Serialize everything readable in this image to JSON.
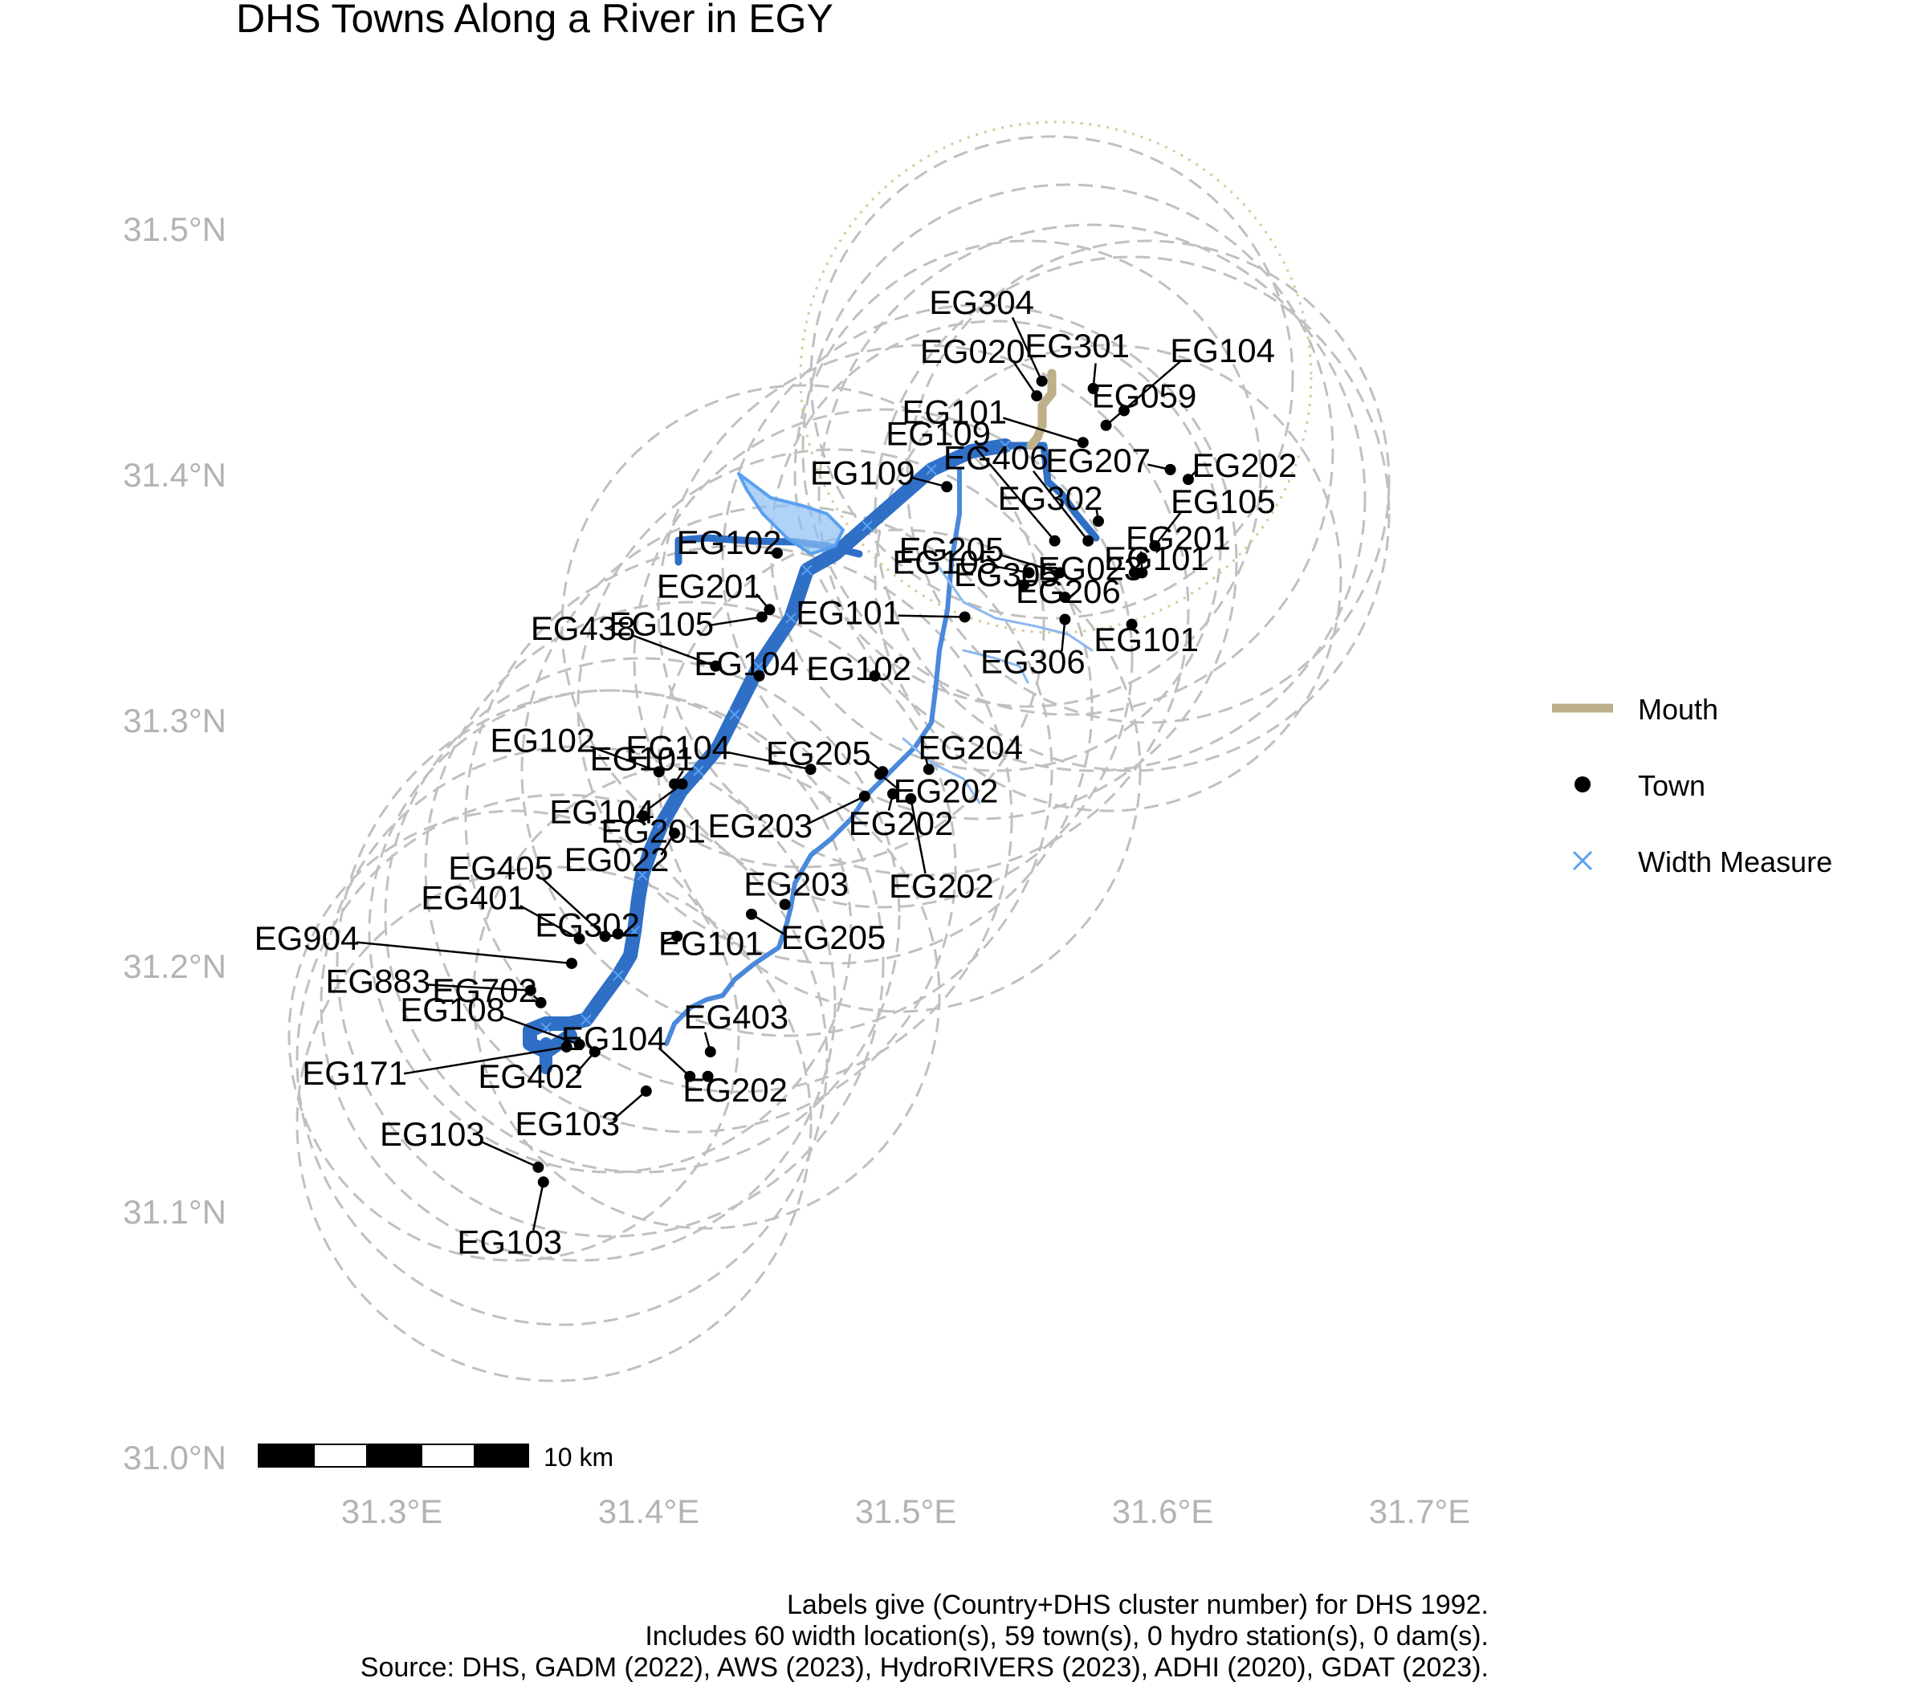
{
  "title": "DHS Towns Along a River in EGY",
  "axes": {
    "y_ticks": [
      {
        "value": 31.0,
        "label": "31.0°N"
      },
      {
        "value": 31.1,
        "label": "31.1°N"
      },
      {
        "value": 31.2,
        "label": "31.2°N"
      },
      {
        "value": 31.3,
        "label": "31.3°N"
      },
      {
        "value": 31.4,
        "label": "31.4°N"
      },
      {
        "value": 31.5,
        "label": "31.5°N"
      }
    ],
    "x_ticks": [
      {
        "value": 31.3,
        "label": "31.3°E"
      },
      {
        "value": 31.4,
        "label": "31.4°E"
      },
      {
        "value": 31.5,
        "label": "31.5°E"
      },
      {
        "value": 31.6,
        "label": "31.6°E"
      },
      {
        "value": 31.7,
        "label": "31.7°E"
      }
    ]
  },
  "legend": {
    "items": [
      {
        "key": "mouth",
        "label": "Mouth",
        "color": "#bdb08a"
      },
      {
        "key": "town",
        "label": "Town",
        "color": "#000000"
      },
      {
        "key": "width",
        "label": "Width Measure",
        "color": "#5aa0f0"
      }
    ]
  },
  "scale_bar": {
    "label": "10 km"
  },
  "colors": {
    "river_main": "#2f6fc6",
    "river_minor": "#5aa0f0",
    "buffer": "#c0c0c0",
    "mouth": "#bdb08a"
  },
  "towns": [
    {
      "label": "EG304",
      "lon": 31.553,
      "lat": 31.438
    },
    {
      "label": "EG020",
      "lon": 31.551,
      "lat": 31.432
    },
    {
      "label": "EG301",
      "lon": 31.573,
      "lat": 31.435
    },
    {
      "label": "EG104",
      "lon": 31.578,
      "lat": 31.42
    },
    {
      "label": "EG059",
      "lon": 31.585,
      "lat": 31.426
    },
    {
      "label": "EG101",
      "lon": 31.569,
      "lat": 31.413
    },
    {
      "label": "EG109",
      "lon": 31.558,
      "lat": 31.373
    },
    {
      "label": "EG406",
      "lon": 31.571,
      "lat": 31.373
    },
    {
      "label": "EG207",
      "lon": 31.603,
      "lat": 31.402
    },
    {
      "label": "EG202",
      "lon": 31.61,
      "lat": 31.398
    },
    {
      "label": "EG109",
      "lon": 31.516,
      "lat": 31.395
    },
    {
      "label": "EG302",
      "lon": 31.575,
      "lat": 31.381
    },
    {
      "label": "EG105",
      "lon": 31.597,
      "lat": 31.371
    },
    {
      "label": "EG102",
      "lon": 31.45,
      "lat": 31.368
    },
    {
      "label": "EG205",
      "lon": 31.56,
      "lat": 31.36
    },
    {
      "label": "EG101",
      "lon": 31.592,
      "lat": 31.366
    },
    {
      "label": "EG023",
      "lon": 31.589,
      "lat": 31.36
    },
    {
      "label": "EG105",
      "lon": 31.548,
      "lat": 31.36
    },
    {
      "label": "EG201",
      "lon": 31.447,
      "lat": 31.345
    },
    {
      "label": "EG206",
      "lon": 31.562,
      "lat": 31.35
    },
    {
      "label": "EG201",
      "lon": 31.592,
      "lat": 31.36
    },
    {
      "label": "EG105",
      "lon": 31.444,
      "lat": 31.342
    },
    {
      "label": "EG101",
      "lon": 31.523,
      "lat": 31.342
    },
    {
      "label": "EG305",
      "lon": 31.546,
      "lat": 31.355
    },
    {
      "label": "EG101",
      "lon": 31.588,
      "lat": 31.339
    },
    {
      "label": "EG438",
      "lon": 31.426,
      "lat": 31.322
    },
    {
      "label": "EG104",
      "lon": 31.443,
      "lat": 31.318
    },
    {
      "label": "EG102",
      "lon": 31.488,
      "lat": 31.318
    },
    {
      "label": "EG306",
      "lon": 31.562,
      "lat": 31.341
    },
    {
      "label": "EG104",
      "lon": 31.463,
      "lat": 31.28
    },
    {
      "label": "EG205",
      "lon": 31.491,
      "lat": 31.279
    },
    {
      "label": "EG204",
      "lon": 31.509,
      "lat": 31.28
    },
    {
      "label": "EG102",
      "lon": 31.404,
      "lat": 31.279
    },
    {
      "label": "EG101",
      "lon": 31.41,
      "lat": 31.274
    },
    {
      "label": "EG202",
      "lon": 31.49,
      "lat": 31.278
    },
    {
      "label": "EG104",
      "lon": 31.413,
      "lat": 31.274
    },
    {
      "label": "EG201",
      "lon": 31.398,
      "lat": 31.261
    },
    {
      "label": "EG203",
      "lon": 31.484,
      "lat": 31.269
    },
    {
      "label": "EG202",
      "lon": 31.495,
      "lat": 31.27
    },
    {
      "label": "EG022",
      "lon": 31.41,
      "lat": 31.254
    },
    {
      "label": "EG202",
      "lon": 31.502,
      "lat": 31.268
    },
    {
      "label": "EG405",
      "lon": 31.383,
      "lat": 31.212
    },
    {
      "label": "EG302",
      "lon": 31.388,
      "lat": 31.213
    },
    {
      "label": "EG401",
      "lon": 31.373,
      "lat": 31.211
    },
    {
      "label": "EG904",
      "lon": 31.37,
      "lat": 31.201
    },
    {
      "label": "EG203",
      "lon": 31.453,
      "lat": 31.225
    },
    {
      "label": "EG101",
      "lon": 31.411,
      "lat": 31.212
    },
    {
      "label": "EG205",
      "lon": 31.44,
      "lat": 31.221
    },
    {
      "label": "EG702",
      "lon": 31.358,
      "lat": 31.185
    },
    {
      "label": "EG883",
      "lon": 31.354,
      "lat": 31.19
    },
    {
      "label": "EG104",
      "lon": 31.416,
      "lat": 31.155
    },
    {
      "label": "EG403",
      "lon": 31.424,
      "lat": 31.165
    },
    {
      "label": "EG108",
      "lon": 31.373,
      "lat": 31.168
    },
    {
      "label": "EG171",
      "lon": 31.368,
      "lat": 31.167
    },
    {
      "label": "EG402",
      "lon": 31.379,
      "lat": 31.165
    },
    {
      "label": "EG202",
      "lon": 31.423,
      "lat": 31.155
    },
    {
      "label": "EG103",
      "lon": 31.399,
      "lat": 31.149
    },
    {
      "label": "EG103",
      "lon": 31.357,
      "lat": 31.118
    },
    {
      "label": "EG103",
      "lon": 31.359,
      "lat": 31.112
    }
  ],
  "caption": {
    "line1": "Labels give (Country+DHS cluster number) for DHS 1992.",
    "line2": "Includes 60 width location(s), 59 town(s), 0 hydro station(s), 0 dam(s).",
    "line3": "Source: DHS, GADM (2022), AWS (2023), HydroRIVERS (2023), ADHI (2020), GDAT (2023)."
  }
}
